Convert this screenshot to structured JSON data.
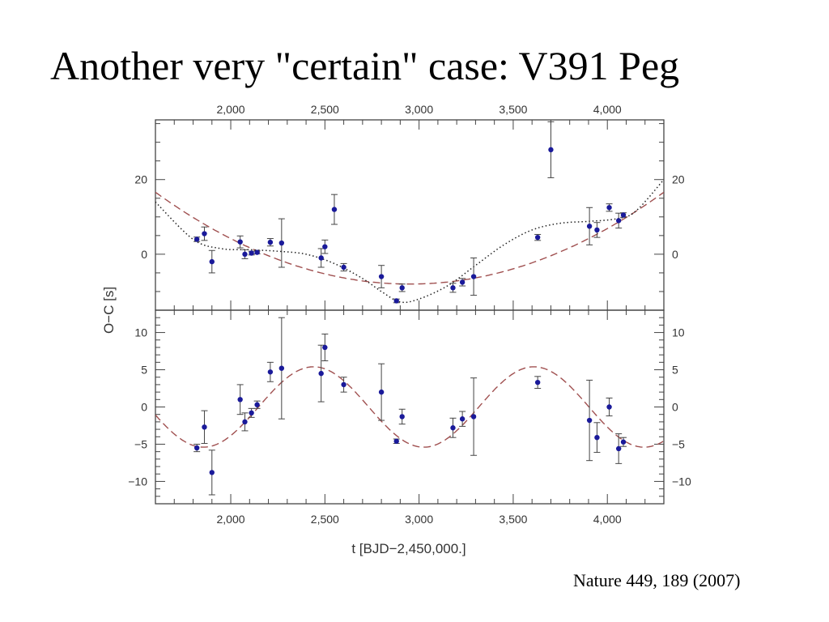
{
  "slide": {
    "title": "Another very \"certain\" case: V391 Peg",
    "citation": "Nature 449, 189 (2007)"
  },
  "colors": {
    "points": "#1a1a9a",
    "dashed_fit": "#a05050",
    "dotted_fit": "#222222",
    "axes": "#444444"
  },
  "chart_data": {
    "type": "scatter",
    "xlabel": "t  [BJD−2,450,000.]",
    "ylabel": "O−C [s]",
    "xlim": [
      1600,
      4300
    ],
    "x_ticks": [
      2000,
      2500,
      3000,
      3500,
      4000
    ],
    "x_tick_labels": [
      "2,000",
      "2,500",
      "3,000",
      "3,500",
      "4,000"
    ],
    "panels": [
      {
        "name": "top",
        "ylim": [
          -15,
          36
        ],
        "y_ticks": [
          0,
          20
        ],
        "y_tick_labels": [
          "0",
          "20"
        ],
        "points": [
          {
            "x": 1820,
            "y": 4,
            "err": 0.6
          },
          {
            "x": 1860,
            "y": 5.5,
            "err": 1.8
          },
          {
            "x": 1900,
            "y": -2,
            "err": 3
          },
          {
            "x": 2050,
            "y": 3.3,
            "err": 1.6
          },
          {
            "x": 2075,
            "y": 0,
            "err": 1.2
          },
          {
            "x": 2110,
            "y": 0.3,
            "err": 0.5
          },
          {
            "x": 2140,
            "y": 0.5,
            "err": 0.4
          },
          {
            "x": 2210,
            "y": 3.2,
            "err": 1
          },
          {
            "x": 2270,
            "y": 3,
            "err": 6.5
          },
          {
            "x": 2480,
            "y": -1,
            "err": 2.5
          },
          {
            "x": 2500,
            "y": 2,
            "err": 1.8
          },
          {
            "x": 2550,
            "y": 12,
            "err": 4
          },
          {
            "x": 2600,
            "y": -3.5,
            "err": 1
          },
          {
            "x": 2800,
            "y": -6,
            "err": 3
          },
          {
            "x": 2880,
            "y": -12.5,
            "err": 0.5
          },
          {
            "x": 2910,
            "y": -9,
            "err": 1
          },
          {
            "x": 3180,
            "y": -9,
            "err": 1.2
          },
          {
            "x": 3230,
            "y": -7.5,
            "err": 1
          },
          {
            "x": 3290,
            "y": -6,
            "err": 5
          },
          {
            "x": 3630,
            "y": 4.5,
            "err": 0.8
          },
          {
            "x": 3700,
            "y": 28,
            "err": 7.5
          },
          {
            "x": 3905,
            "y": 7.5,
            "err": 5
          },
          {
            "x": 3945,
            "y": 6.5,
            "err": 2
          },
          {
            "x": 4010,
            "y": 12.5,
            "err": 1
          },
          {
            "x": 4060,
            "y": 9,
            "err": 2
          },
          {
            "x": 4085,
            "y": 10.5,
            "err": 0.6
          }
        ],
        "fits": [
          {
            "style": "dashed",
            "kind": "quadratic",
            "vertex_x": 2950,
            "vertex_y": -8,
            "curvature": 1.35e-05
          },
          {
            "style": "dotted",
            "kind": "smooth",
            "x": [
              1600,
              1800,
              1950,
              2100,
              2250,
              2400,
              2550,
              2700,
              2800,
              2900,
              3000,
              3150,
              3300,
              3450,
              3600,
              3750,
              3900,
              4050,
              4150,
              4300
            ],
            "y": [
              14,
              4,
              1.5,
              1.2,
              0.8,
              0,
              -2.5,
              -6.5,
              -10,
              -12.8,
              -12,
              -8.5,
              -3,
              2.5,
              6.5,
              8.3,
              8.8,
              9.5,
              11.5,
              20
            ]
          }
        ]
      },
      {
        "name": "bottom",
        "ylim": [
          -13,
          13
        ],
        "y_ticks": [
          -10,
          -5,
          0,
          5,
          10
        ],
        "y_tick_labels": [
          "−10",
          "−5",
          "0",
          "5",
          "10"
        ],
        "points": [
          {
            "x": 1820,
            "y": -5.5,
            "err": 0.5
          },
          {
            "x": 1860,
            "y": -2.7,
            "err": 2.2
          },
          {
            "x": 1900,
            "y": -8.8,
            "err": 3
          },
          {
            "x": 2050,
            "y": 1,
            "err": 2
          },
          {
            "x": 2075,
            "y": -2,
            "err": 1.2
          },
          {
            "x": 2110,
            "y": -0.8,
            "err": 0.6
          },
          {
            "x": 2140,
            "y": 0.3,
            "err": 0.5
          },
          {
            "x": 2210,
            "y": 4.7,
            "err": 1.3
          },
          {
            "x": 2270,
            "y": 5.2,
            "err": 6.8
          },
          {
            "x": 2480,
            "y": 4.5,
            "err": 3.8
          },
          {
            "x": 2500,
            "y": 8,
            "err": 1.8
          },
          {
            "x": 2600,
            "y": 3,
            "err": 1
          },
          {
            "x": 2800,
            "y": 2,
            "err": 3.8
          },
          {
            "x": 2880,
            "y": -4.6,
            "err": 0.3
          },
          {
            "x": 2910,
            "y": -1.3,
            "err": 1
          },
          {
            "x": 3180,
            "y": -2.8,
            "err": 1.3
          },
          {
            "x": 3230,
            "y": -1.6,
            "err": 1
          },
          {
            "x": 3290,
            "y": -1.3,
            "err": 5.2
          },
          {
            "x": 3630,
            "y": 3.3,
            "err": 0.8
          },
          {
            "x": 3905,
            "y": -1.8,
            "err": 5.4
          },
          {
            "x": 3945,
            "y": -4.1,
            "err": 2
          },
          {
            "x": 4010,
            "y": 0,
            "err": 1.2
          },
          {
            "x": 4060,
            "y": -5.6,
            "err": 2
          },
          {
            "x": 4085,
            "y": -4.7,
            "err": 0.6
          }
        ],
        "fits": [
          {
            "style": "dashed",
            "kind": "sinusoid",
            "amplitude": 5.4,
            "period": 1170,
            "peak_x": 2440
          }
        ]
      }
    ]
  }
}
